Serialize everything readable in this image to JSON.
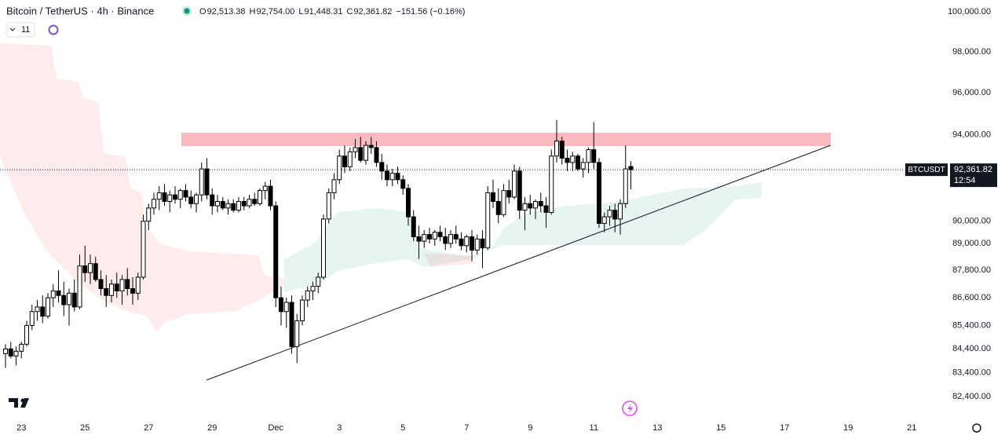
{
  "header": {
    "symbol": "Bitcoin / TetherUS · 4h · Binance",
    "ohlc": [
      {
        "label": "O",
        "value": "92,513.38"
      },
      {
        "label": "H",
        "value": "92,754.00"
      },
      {
        "label": "L",
        "value": "91,448.31"
      },
      {
        "label": "C",
        "value": "92,361.82"
      }
    ],
    "change": "−151.56 (−0.16%)",
    "indicators": "11"
  },
  "price_tag": {
    "symbol": "BTCUSDT",
    "price": "92,361.82",
    "countdown": "12:54"
  },
  "chart_data": {
    "type": "candlestick",
    "log": true,
    "up_color": "#ffffff",
    "down_color": "#000000",
    "ylim": [
      82400,
      100000
    ],
    "yticks": [
      {
        "value": 100000,
        "label": "100,000.00"
      },
      {
        "value": 98000,
        "label": "98,000.00"
      },
      {
        "value": 96000,
        "label": "96,000.00"
      },
      {
        "value": 94000,
        "label": "94,000.00"
      },
      {
        "value": 90000,
        "label": "90,000.00"
      },
      {
        "value": 89000,
        "label": "89,000.00"
      },
      {
        "value": 87800,
        "label": "87,800.00"
      },
      {
        "value": 86600,
        "label": "86,600.00"
      },
      {
        "value": 85400,
        "label": "85,400.00"
      },
      {
        "value": 84400,
        "label": "84,400.00"
      },
      {
        "value": 83400,
        "label": "83,400.00"
      },
      {
        "value": 82400,
        "label": "82,400.00"
      }
    ],
    "xticks": [
      {
        "value": 3,
        "label": "23"
      },
      {
        "value": 15,
        "label": "25"
      },
      {
        "value": 27,
        "label": "27"
      },
      {
        "value": 39,
        "label": "29"
      },
      {
        "value": 51,
        "label": "Dec"
      },
      {
        "value": 63,
        "label": "3"
      },
      {
        "value": 75,
        "label": "5"
      },
      {
        "value": 87,
        "label": "7"
      },
      {
        "value": 99,
        "label": "9"
      },
      {
        "value": 111,
        "label": "11"
      },
      {
        "value": 123,
        "label": "13"
      },
      {
        "value": 135,
        "label": "15"
      },
      {
        "value": 147,
        "label": "17"
      },
      {
        "value": 159,
        "label": "19"
      },
      {
        "value": 171,
        "label": "21"
      }
    ],
    "last_price": 92361.82,
    "ohlc": [
      [
        84200,
        84600,
        83600,
        84400
      ],
      [
        84400,
        84700,
        84000,
        84100
      ],
      [
        84100,
        84500,
        83700,
        84300
      ],
      [
        84300,
        84700,
        84000,
        84600
      ],
      [
        84600,
        85600,
        84500,
        85400
      ],
      [
        85400,
        86300,
        85200,
        86000
      ],
      [
        86000,
        86500,
        85600,
        86200
      ],
      [
        86200,
        86700,
        85500,
        85800
      ],
      [
        85800,
        86800,
        85700,
        86600
      ],
      [
        86600,
        87200,
        86200,
        86900
      ],
      [
        86900,
        87800,
        86400,
        86700
      ],
      [
        86700,
        87300,
        85800,
        86300
      ],
      [
        86300,
        87000,
        85400,
        86800
      ],
      [
        86800,
        87400,
        86000,
        86200
      ],
      [
        86200,
        88500,
        86100,
        88000
      ],
      [
        88000,
        88900,
        87300,
        87700
      ],
      [
        87700,
        88500,
        87200,
        88100
      ],
      [
        88100,
        88400,
        87300,
        87400
      ],
      [
        87400,
        87800,
        86700,
        87000
      ],
      [
        87000,
        87600,
        86200,
        86700
      ],
      [
        86700,
        87400,
        86400,
        87200
      ],
      [
        87200,
        87700,
        86600,
        86900
      ],
      [
        86900,
        87600,
        86300,
        87400
      ],
      [
        87400,
        87900,
        86700,
        87000
      ],
      [
        87000,
        87500,
        86300,
        86800
      ],
      [
        86800,
        87700,
        86500,
        87500
      ],
      [
        87500,
        90300,
        87400,
        90000
      ],
      [
        90000,
        90800,
        89600,
        90600
      ],
      [
        90600,
        91300,
        90300,
        91000
      ],
      [
        91000,
        91600,
        90500,
        91300
      ],
      [
        91300,
        91700,
        90700,
        90900
      ],
      [
        90900,
        91400,
        90400,
        91200
      ],
      [
        91200,
        91600,
        90800,
        91000
      ],
      [
        91000,
        91500,
        90600,
        91400
      ],
      [
        91400,
        91700,
        90900,
        91100
      ],
      [
        91100,
        91400,
        90600,
        90800
      ],
      [
        90800,
        91300,
        90400,
        91200
      ],
      [
        91200,
        92700,
        90900,
        92400
      ],
      [
        92400,
        92900,
        91000,
        91200
      ],
      [
        91200,
        91500,
        90300,
        90700
      ],
      [
        90700,
        91200,
        90400,
        90900
      ],
      [
        90900,
        91100,
        90500,
        90600
      ],
      [
        90600,
        91000,
        90300,
        90800
      ],
      [
        90800,
        91000,
        90400,
        90500
      ],
      [
        90500,
        91100,
        90400,
        90900
      ],
      [
        90900,
        91100,
        90500,
        90700
      ],
      [
        90700,
        91200,
        90600,
        91000
      ],
      [
        91000,
        91300,
        90700,
        90800
      ],
      [
        90800,
        91500,
        90700,
        91400
      ],
      [
        91400,
        91800,
        91000,
        91600
      ],
      [
        91600,
        91900,
        90500,
        90700
      ],
      [
        90700,
        90900,
        86200,
        86600
      ],
      [
        86600,
        87100,
        85400,
        86000
      ],
      [
        86000,
        86600,
        85300,
        86400
      ],
      [
        86400,
        86700,
        84200,
        84500
      ],
      [
        84500,
        85900,
        83800,
        85600
      ],
      [
        85600,
        86700,
        85400,
        86500
      ],
      [
        86500,
        87100,
        86200,
        86900
      ],
      [
        86900,
        87300,
        86500,
        87100
      ],
      [
        87100,
        87700,
        86800,
        87500
      ],
      [
        87500,
        90300,
        87400,
        90100
      ],
      [
        90100,
        91500,
        89900,
        91300
      ],
      [
        91300,
        92200,
        91000,
        91900
      ],
      [
        91900,
        93300,
        91700,
        93000
      ],
      [
        93000,
        93500,
        92200,
        92500
      ],
      [
        92500,
        93400,
        92300,
        93200
      ],
      [
        93200,
        93800,
        92900,
        93400
      ],
      [
        93400,
        93900,
        92700,
        92800
      ],
      [
        92800,
        93700,
        92600,
        93500
      ],
      [
        93500,
        93900,
        93100,
        93400
      ],
      [
        93400,
        93700,
        92500,
        92700
      ],
      [
        92700,
        93100,
        91900,
        92300
      ],
      [
        92300,
        92600,
        91600,
        91900
      ],
      [
        91900,
        92400,
        91600,
        92200
      ],
      [
        92200,
        92500,
        91700,
        91900
      ],
      [
        91900,
        92100,
        91200,
        91500
      ],
      [
        91500,
        91700,
        89800,
        90200
      ],
      [
        90200,
        90500,
        89100,
        89300
      ],
      [
        89300,
        89800,
        88300,
        89100
      ],
      [
        89100,
        89600,
        88800,
        89400
      ],
      [
        89400,
        89700,
        89000,
        89200
      ],
      [
        89200,
        89600,
        88900,
        89500
      ],
      [
        89500,
        89800,
        89100,
        89300
      ],
      [
        89300,
        89700,
        88700,
        89000
      ],
      [
        89000,
        89600,
        88800,
        89400
      ],
      [
        89400,
        89800,
        89000,
        89200
      ],
      [
        89200,
        89500,
        88700,
        88900
      ],
      [
        88900,
        89400,
        88600,
        89300
      ],
      [
        89300,
        89600,
        88200,
        88700
      ],
      [
        88700,
        89400,
        88500,
        89200
      ],
      [
        89200,
        89600,
        87900,
        88800
      ],
      [
        88800,
        91600,
        88700,
        91300
      ],
      [
        91300,
        91900,
        90600,
        90900
      ],
      [
        90900,
        91500,
        89900,
        90300
      ],
      [
        90300,
        91700,
        90200,
        91400
      ],
      [
        91400,
        91900,
        90800,
        91100
      ],
      [
        91100,
        92600,
        91000,
        92300
      ],
      [
        92300,
        92500,
        90100,
        90500
      ],
      [
        90500,
        91100,
        89600,
        90800
      ],
      [
        90800,
        91200,
        90300,
        90600
      ],
      [
        90600,
        91000,
        90100,
        90900
      ],
      [
        90900,
        91300,
        90400,
        90700
      ],
      [
        90700,
        91100,
        89700,
        90400
      ],
      [
        90400,
        93300,
        90300,
        93000
      ],
      [
        93000,
        94700,
        92700,
        93700
      ],
      [
        93700,
        93900,
        92600,
        92900
      ],
      [
        92900,
        93300,
        92300,
        92700
      ],
      [
        92700,
        93200,
        92300,
        93000
      ],
      [
        93000,
        93100,
        92300,
        92400
      ],
      [
        92400,
        92900,
        92000,
        92700
      ],
      [
        92700,
        93400,
        92200,
        93300
      ],
      [
        93300,
        94600,
        92400,
        92700
      ],
      [
        92700,
        92900,
        89700,
        89900
      ],
      [
        89900,
        90400,
        89500,
        90200
      ],
      [
        90200,
        90700,
        89800,
        90500
      ],
      [
        90500,
        90800,
        89500,
        90100
      ],
      [
        90100,
        91000,
        89400,
        90800
      ],
      [
        90800,
        93500,
        90600,
        92400
      ],
      [
        92513.38,
        92754,
        91448.31,
        92361.82
      ]
    ]
  }
}
